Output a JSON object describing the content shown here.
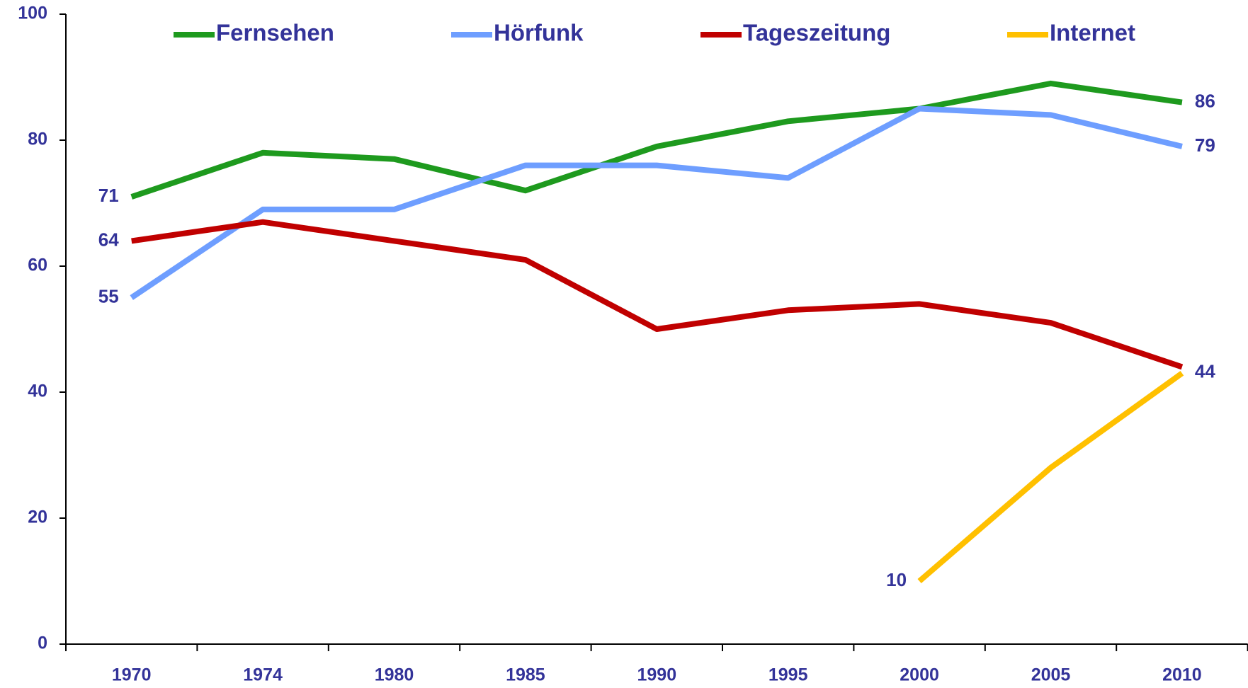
{
  "chart_data": {
    "type": "line",
    "categories": [
      "1970",
      "1974",
      "1980",
      "1985",
      "1990",
      "1995",
      "2000",
      "2005",
      "2010"
    ],
    "series": [
      {
        "name": "Fernsehen",
        "color": "#1e9a1e",
        "values": [
          71,
          78,
          77,
          72,
          79,
          83,
          85,
          89,
          86
        ]
      },
      {
        "name": "Hörfunk",
        "color": "#6e9eff",
        "values": [
          55,
          69,
          69,
          76,
          76,
          74,
          85,
          84,
          79
        ]
      },
      {
        "name": "Tageszeitung",
        "color": "#c00000",
        "values": [
          64,
          67,
          64,
          61,
          50,
          53,
          54,
          51,
          44
        ]
      },
      {
        "name": "Internet",
        "color": "#ffc000",
        "values": [
          null,
          null,
          null,
          null,
          null,
          null,
          10,
          28,
          43
        ]
      }
    ],
    "ylim": [
      0,
      100
    ],
    "yticks": [
      0,
      20,
      40,
      60,
      80,
      100
    ],
    "grid": false,
    "legend": "top"
  }
}
